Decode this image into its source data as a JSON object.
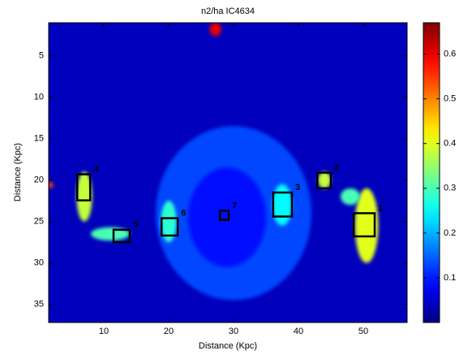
{
  "chart_data": {
    "type": "heatmap",
    "title": "n2/ha IC4634",
    "x_label": "Distance (Kpc)",
    "y_label": "Distance (Kpc)",
    "xlim": [
      1.5,
      56.75
    ],
    "ylim": [
      1,
      37.2
    ],
    "y_reversed": true,
    "xticks": [
      10,
      20,
      30,
      40,
      50
    ],
    "yticks": [
      5,
      10,
      15,
      20,
      25,
      30,
      35
    ],
    "colorbar": {
      "lim": [
        0,
        0.67
      ],
      "ticks": [
        0.1,
        0.2,
        0.3,
        0.4,
        0.5,
        0.6
      ],
      "colormap": "jet"
    },
    "background_value": 0.04,
    "regions": [
      {
        "x": 30,
        "y": 24,
        "rx": 12,
        "ry": 10.5,
        "value": 0.13
      },
      {
        "x": 29,
        "y": 24.5,
        "rx": 6,
        "ry": 6,
        "value": 0.09
      },
      {
        "x": 7,
        "y": 22,
        "rx": 1.2,
        "ry": 3,
        "value": 0.38
      },
      {
        "x": 11,
        "y": 26.5,
        "rx": 3,
        "ry": 0.8,
        "value": 0.3
      },
      {
        "x": 50.5,
        "y": 25.5,
        "rx": 1.8,
        "ry": 4.5,
        "value": 0.4
      },
      {
        "x": 48,
        "y": 22,
        "rx": 1.5,
        "ry": 1,
        "value": 0.3
      },
      {
        "x": 44,
        "y": 20,
        "rx": 1,
        "ry": 1,
        "value": 0.38
      },
      {
        "x": 37.5,
        "y": 23,
        "rx": 1.5,
        "ry": 2.5,
        "value": 0.25
      },
      {
        "x": 20,
        "y": 25,
        "rx": 1.2,
        "ry": 2.5,
        "value": 0.28
      },
      {
        "x": 27.2,
        "y": 1.8,
        "rx": 0.9,
        "ry": 0.8,
        "value": 0.6
      },
      {
        "x": 1.8,
        "y": 20.6,
        "rx": 0.4,
        "ry": 0.4,
        "value": 0.55
      }
    ],
    "boxes": [
      {
        "label": "1",
        "x": [
          48.5,
          51.75
        ],
        "y": [
          24,
          26.8
        ]
      },
      {
        "label": "2",
        "x": [
          42.9,
          45
        ],
        "y": [
          19.1,
          21
        ]
      },
      {
        "label": "3",
        "x": [
          36.1,
          39
        ],
        "y": [
          21.5,
          24.4
        ]
      },
      {
        "label": "4",
        "x": [
          5.9,
          7.9
        ],
        "y": [
          19.3,
          22.45
        ]
      },
      {
        "label": "5",
        "x": [
          11.5,
          14
        ],
        "y": [
          26,
          27.5
        ]
      },
      {
        "label": "6",
        "x": [
          18.9,
          21.4
        ],
        "y": [
          24.6,
          26.7
        ]
      },
      {
        "label": "7",
        "x": [
          27.9,
          29.25
        ],
        "y": [
          23.7,
          24.8
        ]
      }
    ]
  }
}
